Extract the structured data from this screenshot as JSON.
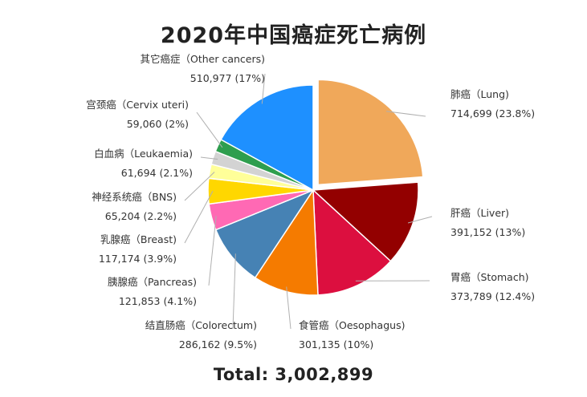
{
  "chart_data": {
    "type": "pie",
    "title": "2020年中国癌症死亡病例",
    "total_label": "Total: 3,002,899",
    "slices": [
      {
        "name": "肺癌（Lung)",
        "value_label": "714,699 (23.8%)",
        "value": 714699,
        "percent": 23.8,
        "color": "#F0A85A"
      },
      {
        "name": "肝癌（Liver)",
        "value_label": "391,152 (13%)",
        "value": 391152,
        "percent": 13.0,
        "color": "#930000"
      },
      {
        "name": "胃癌（Stomach)",
        "value_label": "373,789 (12.4%)",
        "value": 373789,
        "percent": 12.4,
        "color": "#DC0F3F"
      },
      {
        "name": "食管癌（Oesophagus)",
        "value_label": "301,135 (10%)",
        "value": 301135,
        "percent": 10.0,
        "color": "#F57B00"
      },
      {
        "name": "结直肠癌（Colorectum)",
        "value_label": "286,162 (9.5%)",
        "value": 286162,
        "percent": 9.5,
        "color": "#4682B4"
      },
      {
        "name": "胰腺癌（Pancreas)",
        "value_label": "121,853 (4.1%)",
        "value": 121853,
        "percent": 4.1,
        "color": "#FF69B4"
      },
      {
        "name": "乳腺癌（Breast)",
        "value_label": "117,174 (3.9%)",
        "value": 117174,
        "percent": 3.9,
        "color": "#FFD700"
      },
      {
        "name": "神经系统癌（BNS)",
        "value_label": "65,204 (2.2%)",
        "value": 65204,
        "percent": 2.2,
        "color": "#FFFF99"
      },
      {
        "name": "白血病（Leukaemia)",
        "value_label": "61,694 (2.1%)",
        "value": 61694,
        "percent": 2.1,
        "color": "#D3D3D3"
      },
      {
        "name": "宫颈癌（Cervix uteri)",
        "value_label": "59,060 (2%)",
        "value": 59060,
        "percent": 2.0,
        "color": "#2E9E4E"
      },
      {
        "name": "其它癌症（Other cancers)",
        "value_label": "510,977 (17%)",
        "value": 510977,
        "percent": 17.0,
        "color": "#1E90FF"
      }
    ]
  }
}
